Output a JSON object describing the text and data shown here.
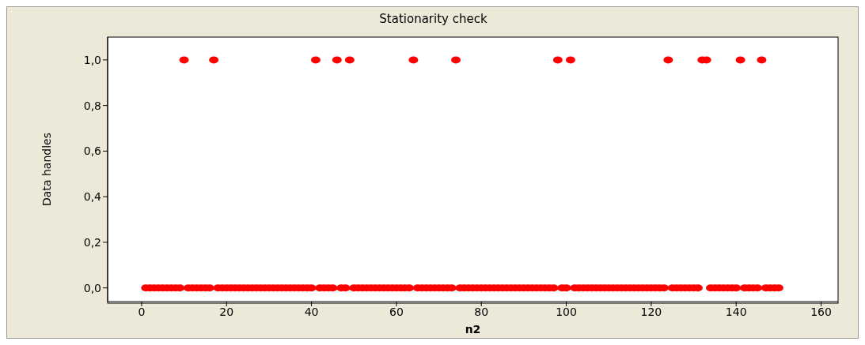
{
  "chart_data": {
    "type": "scatter",
    "title": "Stationarity check",
    "xlabel": "n2",
    "ylabel": "Data handles",
    "x": [
      1,
      2,
      3,
      4,
      5,
      6,
      7,
      8,
      9,
      10,
      11,
      12,
      13,
      14,
      15,
      16,
      17,
      18,
      19,
      20,
      21,
      22,
      23,
      24,
      25,
      26,
      27,
      28,
      29,
      30,
      31,
      32,
      33,
      34,
      35,
      36,
      37,
      38,
      39,
      40,
      41,
      42,
      43,
      44,
      45,
      46,
      47,
      48,
      49,
      50,
      51,
      52,
      53,
      54,
      55,
      56,
      57,
      58,
      59,
      60,
      61,
      62,
      63,
      64,
      65,
      66,
      67,
      68,
      69,
      70,
      71,
      72,
      73,
      74,
      75,
      76,
      77,
      78,
      79,
      80,
      81,
      82,
      83,
      84,
      85,
      86,
      87,
      88,
      89,
      90,
      91,
      92,
      93,
      94,
      95,
      96,
      97,
      98,
      99,
      100,
      101,
      102,
      103,
      104,
      105,
      106,
      107,
      108,
      109,
      110,
      111,
      112,
      113,
      114,
      115,
      116,
      117,
      118,
      119,
      120,
      121,
      122,
      123,
      124,
      125,
      126,
      127,
      128,
      129,
      130,
      131,
      132,
      133,
      134,
      135,
      136,
      137,
      138,
      139,
      140,
      141,
      142,
      143,
      144,
      145,
      146,
      147,
      148,
      149,
      150
    ],
    "series": [
      {
        "color": "#ff0000",
        "values": [
          0,
          0,
          0,
          0,
          0,
          0,
          0,
          0,
          0,
          1,
          0,
          0,
          0,
          0,
          0,
          0,
          1,
          0,
          0,
          0,
          0,
          0,
          0,
          0,
          0,
          0,
          0,
          0,
          0,
          0,
          0,
          0,
          0,
          0,
          0,
          0,
          0,
          0,
          0,
          0,
          1,
          0,
          0,
          0,
          0,
          1,
          0,
          0,
          1,
          0,
          0,
          0,
          0,
          0,
          0,
          0,
          0,
          0,
          0,
          0,
          0,
          0,
          0,
          1,
          0,
          0,
          0,
          0,
          0,
          0,
          0,
          0,
          0,
          1,
          0,
          0,
          0,
          0,
          0,
          0,
          0,
          0,
          0,
          0,
          0,
          0,
          0,
          0,
          0,
          0,
          0,
          0,
          0,
          0,
          0,
          0,
          0,
          1,
          0,
          0,
          1,
          0,
          0,
          0,
          0,
          0,
          0,
          0,
          0,
          0,
          0,
          0,
          0,
          0,
          0,
          0,
          0,
          0,
          0,
          0,
          0,
          0,
          0,
          1,
          0,
          0,
          0,
          0,
          0,
          0,
          0,
          1,
          1,
          0,
          0,
          0,
          0,
          0,
          0,
          0,
          1,
          0,
          0,
          0,
          0,
          1,
          0,
          0,
          0,
          0
        ]
      }
    ],
    "xlim": [
      -8,
      164
    ],
    "xticks": [
      0,
      20,
      40,
      60,
      80,
      100,
      120,
      140,
      160
    ],
    "ylim": [
      -0.06,
      1.1
    ],
    "yticks": [
      {
        "value": 0,
        "label": "0,0"
      },
      {
        "value": 0.2,
        "label": "0,2"
      },
      {
        "value": 0.4,
        "label": "0,4"
      },
      {
        "value": 0.6,
        "label": "0,6"
      },
      {
        "value": 0.8,
        "label": "0,8"
      },
      {
        "value": 1,
        "label": "1,0"
      }
    ],
    "marker": "circle",
    "grid": false,
    "legend": false
  }
}
